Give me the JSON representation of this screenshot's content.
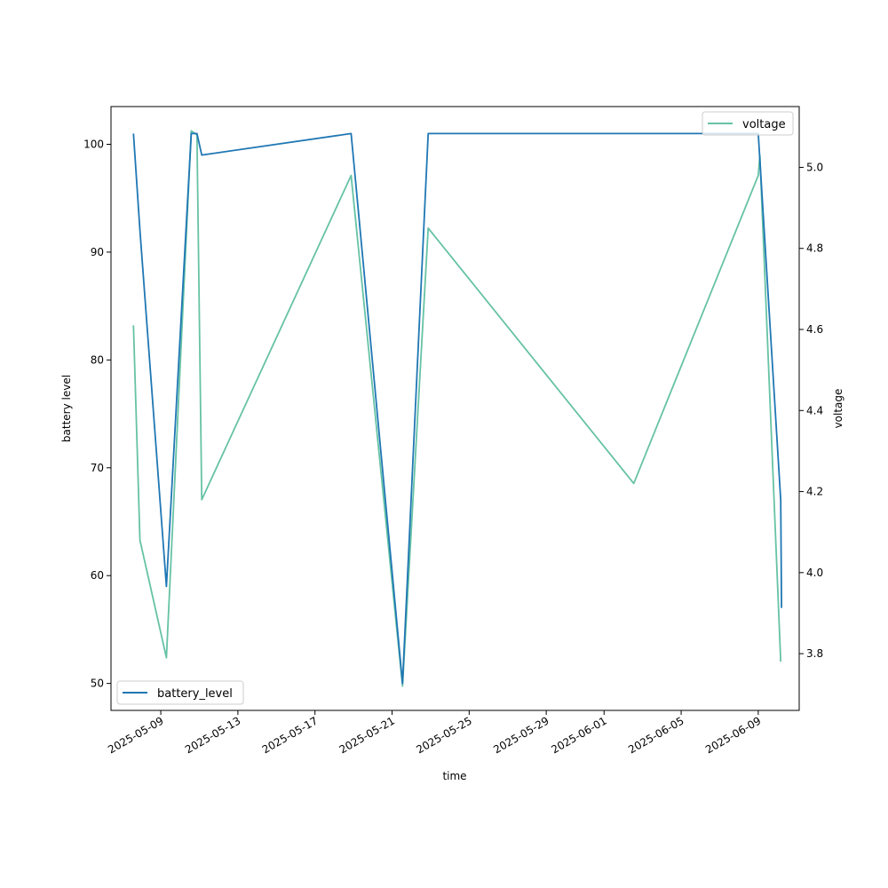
{
  "chart_data": {
    "type": "line",
    "xlabel": "time",
    "ylabel_left": "battery level",
    "ylabel_right": "voltage",
    "x_ticks": [
      "2025-05-09",
      "2025-05-13",
      "2025-05-17",
      "2025-05-21",
      "2025-05-25",
      "2025-05-29",
      "2025-06-01",
      "2025-06-05",
      "2025-06-09"
    ],
    "y_left_ticks": [
      50,
      60,
      70,
      80,
      90,
      100
    ],
    "y_right_ticks": [
      "3.8",
      "4.0",
      "4.2",
      "4.4",
      "4.6",
      "4.8",
      "5.0"
    ],
    "xlim": [
      "2025-05-06T10:00",
      "2025-06-11T03:00"
    ],
    "ylim_left": [
      47.5,
      103.5
    ],
    "ylim_right": [
      3.66,
      5.15
    ],
    "grid": false,
    "series": [
      {
        "name": "battery_level",
        "axis": "left",
        "color": "#1f77b4",
        "x": [
          "2025-05-07T14:00",
          "2025-05-07T22:00",
          "2025-05-09T07:00",
          "2025-05-10T14:00",
          "2025-05-10T21:00",
          "2025-05-11T03:00",
          "2025-05-18T21:00",
          "2025-05-21T13:00",
          "2025-05-22T21:00",
          "2025-06-09T00:00",
          "2025-06-10T04:00",
          "2025-06-10T05:00"
        ],
        "values": [
          101,
          92,
          59,
          101,
          101,
          99,
          101,
          50,
          101,
          101,
          67,
          57
        ]
      },
      {
        "name": "voltage",
        "axis": "right",
        "color": "#66c2a5",
        "x": [
          "2025-05-07T14:00",
          "2025-05-07T22:00",
          "2025-05-09T07:00",
          "2025-05-10T14:00",
          "2025-05-10T21:00",
          "2025-05-11T03:00",
          "2025-05-18T21:00",
          "2025-05-21T13:00",
          "2025-05-22T21:00",
          "2025-06-02T13:00",
          "2025-06-09T00:00",
          "2025-06-09T02:00",
          "2025-06-10T04:00"
        ],
        "values": [
          4.61,
          4.08,
          3.79,
          5.09,
          5.08,
          4.18,
          4.98,
          3.72,
          4.85,
          4.22,
          4.98,
          5.03,
          3.78
        ]
      }
    ],
    "legends": [
      {
        "entry": "battery_level",
        "placement": "lower-left"
      },
      {
        "entry": "voltage",
        "placement": "upper-right"
      }
    ]
  }
}
